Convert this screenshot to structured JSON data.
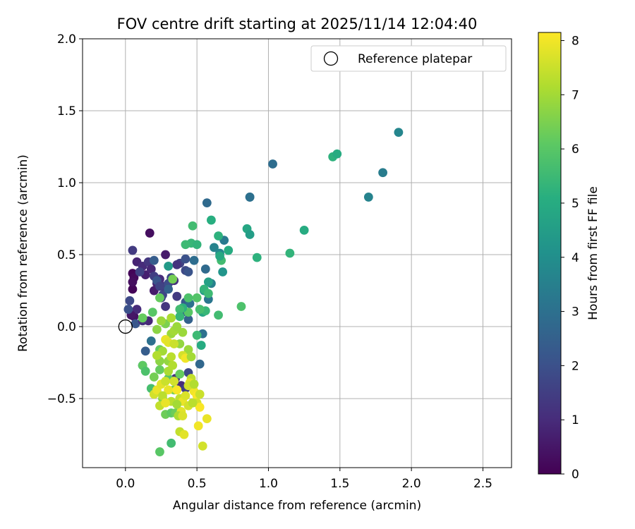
{
  "chart_data": {
    "type": "scatter",
    "title": "FOV centre drift starting at 2025/11/14 12:04:40",
    "xlabel": "Angular distance from reference (arcmin)",
    "ylabel": "Rotation from reference (arcmin)",
    "xlim": [
      -0.3,
      2.7
    ],
    "ylim": [
      -0.98,
      2.0
    ],
    "xticks": [
      0.0,
      0.5,
      1.0,
      1.5,
      2.0,
      2.5
    ],
    "xtick_labels": [
      "0.0",
      "0.5",
      "1.0",
      "1.5",
      "2.0",
      "2.5"
    ],
    "yticks": [
      -0.5,
      0.0,
      0.5,
      1.0,
      1.5,
      2.0
    ],
    "ytick_labels": [
      "−0.5",
      "0.0",
      "0.5",
      "1.0",
      "1.5",
      "2.0"
    ],
    "grid": true,
    "legend": {
      "position": "top-right",
      "entries": [
        "Reference platepar"
      ]
    },
    "reference_point": {
      "x": 0.0,
      "y": 0.0,
      "label": "Reference platepar"
    },
    "colorbar": {
      "label": "Hours from first FF file",
      "min": 0,
      "max": 8.15,
      "ticks": [
        0,
        1,
        2,
        3,
        4,
        5,
        6,
        7,
        8
      ],
      "tick_labels": [
        "0",
        "1",
        "2",
        "3",
        "4",
        "5",
        "6",
        "7",
        "8"
      ],
      "colormap": "viridis"
    },
    "points": [
      [
        0.17,
        0.65,
        0.3
      ],
      [
        0.05,
        0.37,
        0.1
      ],
      [
        0.06,
        0.34,
        0.2
      ],
      [
        0.05,
        0.26,
        0.1
      ],
      [
        0.05,
        0.31,
        0.3
      ],
      [
        0.06,
        0.07,
        0.4
      ],
      [
        0.05,
        0.53,
        1.4
      ],
      [
        0.08,
        0.45,
        0.8
      ],
      [
        0.12,
        0.42,
        1.0
      ],
      [
        0.14,
        0.36,
        0.7
      ],
      [
        0.16,
        0.45,
        1.3
      ],
      [
        0.18,
        0.4,
        0.9
      ],
      [
        0.2,
        0.25,
        0.6
      ],
      [
        0.22,
        0.3,
        0.8
      ],
      [
        0.24,
        0.33,
        1.0
      ],
      [
        0.26,
        0.28,
        1.2
      ],
      [
        0.28,
        0.5,
        0.6
      ],
      [
        0.25,
        0.2,
        1.5
      ],
      [
        0.28,
        0.14,
        1.3
      ],
      [
        0.3,
        0.3,
        1.9
      ],
      [
        0.32,
        0.34,
        1.7
      ],
      [
        0.34,
        0.32,
        1.1
      ],
      [
        0.36,
        0.21,
        1.4
      ],
      [
        0.38,
        0.44,
        1.6
      ],
      [
        0.36,
        0.43,
        1.2
      ],
      [
        0.42,
        0.47,
        2.0
      ],
      [
        0.42,
        0.39,
        1.8
      ],
      [
        0.44,
        0.38,
        2.1
      ],
      [
        0.1,
        0.38,
        1.6
      ],
      [
        0.08,
        0.12,
        1.0
      ],
      [
        0.07,
        0.02,
        2.2
      ],
      [
        0.04,
        0.08,
        0.5
      ],
      [
        0.02,
        0.12,
        2.0
      ],
      [
        0.03,
        0.18,
        1.8
      ],
      [
        0.2,
        0.35,
        1.5
      ],
      [
        0.22,
        0.32,
        2.1
      ],
      [
        0.24,
        0.28,
        1.6
      ],
      [
        0.26,
        0.22,
        1.7
      ],
      [
        0.3,
        0.26,
        2.5
      ],
      [
        0.2,
        0.46,
        2.4
      ],
      [
        0.16,
        0.04,
        0.9
      ],
      [
        0.12,
        0.04,
        1.1
      ],
      [
        0.14,
        -0.17,
        2.4
      ],
      [
        0.18,
        -0.1,
        3.0
      ],
      [
        0.12,
        -0.27,
        2.9
      ],
      [
        0.35,
        -0.36,
        1.2
      ],
      [
        0.39,
        -0.41,
        1.0
      ],
      [
        0.42,
        -0.43,
        1.5
      ],
      [
        0.44,
        -0.32,
        1.8
      ],
      [
        0.4,
        0.1,
        2.6
      ],
      [
        0.42,
        0.17,
        2.3
      ],
      [
        0.44,
        0.05,
        2.5
      ],
      [
        0.45,
        0.16,
        3.0
      ],
      [
        0.48,
        0.46,
        2.9
      ],
      [
        0.56,
        0.4,
        2.8
      ],
      [
        0.52,
        -0.26,
        2.7
      ],
      [
        0.54,
        -0.05,
        3.0
      ],
      [
        0.57,
        0.86,
        2.8
      ],
      [
        0.58,
        0.19,
        3.2
      ],
      [
        0.6,
        0.3,
        3.5
      ],
      [
        0.62,
        0.55,
        3.6
      ],
      [
        0.66,
        0.51,
        3.8
      ],
      [
        0.68,
        0.38,
        4.2
      ],
      [
        0.69,
        0.6,
        3.3
      ],
      [
        0.87,
        0.9,
        3.1
      ],
      [
        0.87,
        0.9,
        3.0
      ],
      [
        1.03,
        1.13,
        2.9
      ],
      [
        1.7,
        0.9,
        3.6
      ],
      [
        1.8,
        1.07,
        3.4
      ],
      [
        1.91,
        1.35,
        3.7
      ],
      [
        0.55,
        0.25,
        4.3
      ],
      [
        0.58,
        0.31,
        4.6
      ],
      [
        0.54,
        0.1,
        4.8
      ],
      [
        0.53,
        -0.13,
        5.0
      ],
      [
        0.5,
        -0.06,
        5.5
      ],
      [
        0.47,
        0.7,
        5.6
      ],
      [
        0.46,
        0.58,
        5.4
      ],
      [
        0.42,
        0.57,
        5.5
      ],
      [
        0.5,
        0.57,
        5.3
      ],
      [
        0.6,
        0.74,
        5.1
      ],
      [
        0.65,
        0.63,
        5.2
      ],
      [
        0.67,
        0.46,
        5.6
      ],
      [
        0.72,
        0.53,
        5.0
      ],
      [
        0.66,
        0.49,
        4.9
      ],
      [
        0.85,
        0.68,
        4.8
      ],
      [
        0.87,
        0.64,
        4.5
      ],
      [
        0.92,
        0.48,
        5.2
      ],
      [
        1.15,
        0.51,
        5.3
      ],
      [
        1.25,
        0.67,
        5.0
      ],
      [
        1.45,
        1.18,
        5.2
      ],
      [
        1.48,
        1.2,
        5.0
      ],
      [
        0.81,
        0.14,
        5.8
      ],
      [
        0.65,
        0.08,
        5.6
      ],
      [
        0.56,
        0.11,
        5.4
      ],
      [
        0.52,
        0.12,
        5.7
      ],
      [
        0.55,
        0.26,
        5.3
      ],
      [
        0.58,
        0.23,
        5.5
      ],
      [
        0.5,
        0.2,
        5.9
      ],
      [
        0.44,
        0.2,
        5.8
      ],
      [
        0.44,
        0.1,
        6.0
      ],
      [
        0.4,
        0.13,
        5.2
      ],
      [
        0.38,
        0.12,
        5.6
      ],
      [
        0.38,
        0.07,
        5.4
      ],
      [
        0.3,
        0.42,
        4.4
      ],
      [
        0.33,
        0.33,
        6.4
      ],
      [
        0.24,
        0.2,
        6.2
      ],
      [
        0.19,
        0.1,
        6.0
      ],
      [
        0.12,
        0.06,
        6.2
      ],
      [
        0.12,
        -0.27,
        6.1
      ],
      [
        0.14,
        -0.31,
        5.8
      ],
      [
        0.18,
        -0.43,
        5.7
      ],
      [
        0.2,
        -0.35,
        6.4
      ],
      [
        0.24,
        -0.3,
        6.2
      ],
      [
        0.22,
        -0.45,
        6.4
      ],
      [
        0.26,
        -0.5,
        6.6
      ],
      [
        0.3,
        -0.36,
        5.9
      ],
      [
        0.28,
        -0.61,
        6.3
      ],
      [
        0.32,
        -0.6,
        6.1
      ],
      [
        0.34,
        -0.44,
        6.4
      ],
      [
        0.35,
        -0.6,
        6.3
      ],
      [
        0.38,
        -0.33,
        6.2
      ],
      [
        0.32,
        -0.81,
        5.6
      ],
      [
        0.24,
        -0.87,
        6.0
      ],
      [
        0.24,
        -0.16,
        6.2
      ],
      [
        0.24,
        -0.24,
        6.7
      ],
      [
        0.3,
        -0.24,
        6.8
      ],
      [
        0.32,
        -0.05,
        6.9
      ],
      [
        0.34,
        -0.03,
        7.0
      ],
      [
        0.38,
        -0.12,
        6.8
      ],
      [
        0.4,
        -0.04,
        6.9
      ],
      [
        0.44,
        -0.16,
        6.9
      ],
      [
        0.28,
        0.02,
        6.5
      ],
      [
        0.32,
        0.06,
        7.1
      ],
      [
        0.36,
        0.0,
        6.9
      ],
      [
        0.25,
        0.04,
        6.9
      ],
      [
        0.22,
        -0.02,
        6.7
      ],
      [
        0.28,
        -0.09,
        7.9
      ],
      [
        0.3,
        -0.11,
        7.8
      ],
      [
        0.34,
        -0.12,
        7.5
      ],
      [
        0.4,
        -0.2,
        7.6
      ],
      [
        0.42,
        -0.22,
        8.0
      ],
      [
        0.32,
        -0.21,
        7.3
      ],
      [
        0.26,
        -0.17,
        7.0
      ],
      [
        0.22,
        -0.2,
        7.2
      ],
      [
        0.2,
        -0.47,
        7.6
      ],
      [
        0.22,
        -0.44,
        7.9
      ],
      [
        0.25,
        -0.4,
        7.8
      ],
      [
        0.28,
        -0.38,
        7.5
      ],
      [
        0.3,
        -0.44,
        7.9
      ],
      [
        0.32,
        -0.52,
        7.3
      ],
      [
        0.34,
        -0.38,
        7.6
      ],
      [
        0.36,
        -0.44,
        8.1
      ],
      [
        0.38,
        -0.5,
        7.4
      ],
      [
        0.4,
        -0.52,
        7.9
      ],
      [
        0.42,
        -0.48,
        7.7
      ],
      [
        0.44,
        -0.55,
        7.6
      ],
      [
        0.46,
        -0.36,
        7.4
      ],
      [
        0.45,
        -0.39,
        7.8
      ],
      [
        0.48,
        -0.45,
        8.0
      ],
      [
        0.5,
        -0.48,
        8.1
      ],
      [
        0.52,
        -0.47,
        7.5
      ],
      [
        0.5,
        -0.53,
        7.6
      ],
      [
        0.52,
        -0.56,
        8.1
      ],
      [
        0.47,
        -0.53,
        7.3
      ],
      [
        0.39,
        -0.59,
        7.8
      ],
      [
        0.37,
        -0.62,
        7.1
      ],
      [
        0.4,
        -0.62,
        7.7
      ],
      [
        0.38,
        -0.73,
        7.4
      ],
      [
        0.41,
        -0.75,
        7.8
      ],
      [
        0.51,
        -0.69,
        8.0
      ],
      [
        0.57,
        -0.64,
        7.9
      ],
      [
        0.54,
        -0.83,
        7.6
      ],
      [
        0.26,
        -0.48,
        7.3
      ],
      [
        0.3,
        -0.31,
        7.1
      ],
      [
        0.33,
        -0.27,
        7.2
      ],
      [
        0.36,
        -0.54,
        7.0
      ],
      [
        0.24,
        -0.55,
        7.4
      ],
      [
        0.46,
        -0.21,
        7.0
      ],
      [
        0.44,
        -0.41,
        7.6
      ],
      [
        0.48,
        -0.4,
        7.2
      ],
      [
        0.28,
        -0.53,
        7.9
      ]
    ]
  }
}
